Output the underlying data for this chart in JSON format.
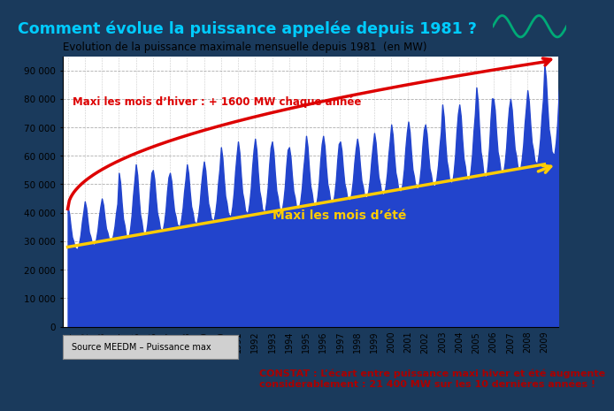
{
  "title_main": "Comment évolue la puissance appelée depuis 1981 ?",
  "chart_title": "Evolution de la puissance maximale mensuelle depuis 1981  (en MW)",
  "years": [
    1981,
    1982,
    1983,
    1984,
    1985,
    1986,
    1987,
    1988,
    1989,
    1990,
    1991,
    1992,
    1993,
    1994,
    1995,
    1996,
    1997,
    1998,
    1999,
    2000,
    2001,
    2002,
    2003,
    2004,
    2005,
    2006,
    2007,
    2008,
    2009
  ],
  "winter_max": [
    42000,
    44000,
    45000,
    54000,
    57000,
    55000,
    54000,
    57000,
    58000,
    63000,
    65000,
    66000,
    65000,
    63000,
    67000,
    67000,
    65000,
    66000,
    68000,
    71000,
    72000,
    71000,
    78000,
    78000,
    84000,
    80000,
    80000,
    83000,
    92000
  ],
  "summer_min": [
    27000,
    28500,
    30000,
    31000,
    32000,
    33500,
    35000,
    36000,
    37000,
    38500,
    39500,
    40000,
    40500,
    41000,
    42000,
    43000,
    44000,
    45000,
    46000,
    47000,
    48000,
    49000,
    50000,
    51000,
    52000,
    53500,
    55000,
    57000,
    60000
  ],
  "ylim": [
    0,
    95000
  ],
  "yticks": [
    0,
    10000,
    20000,
    30000,
    40000,
    50000,
    60000,
    70000,
    80000,
    90000
  ],
  "ytick_labels": [
    "0",
    "10 000",
    "20 000",
    "30 000",
    "40 000",
    "50 000",
    "60 000",
    "70 000",
    "80 000",
    "90 000"
  ],
  "bg_color_outer": "#1a3a5c",
  "bg_color_chart": "#ffffff",
  "bar_color": "#2244cc",
  "red_line_color": "#dd0000",
  "yellow_line_color": "#ffcc00",
  "grid_color": "#999999",
  "annotation_winter": "Maxi les mois d’hiver : + 1600 MW chaque année",
  "annotation_summer": "Maxi les mois d’été",
  "source_text": "Source MEEDM – Puissance max",
  "constat_text": "CONSTAT : L’écart entre puissance maxi hiver et été augmente\nconsidérablement : 21 400 MW sur les 10 dernières années !",
  "title_color": "#00ccff",
  "separator_color": "#cc8800",
  "constat_bg": "#b8d0e8",
  "source_bg": "#d0d0d0"
}
